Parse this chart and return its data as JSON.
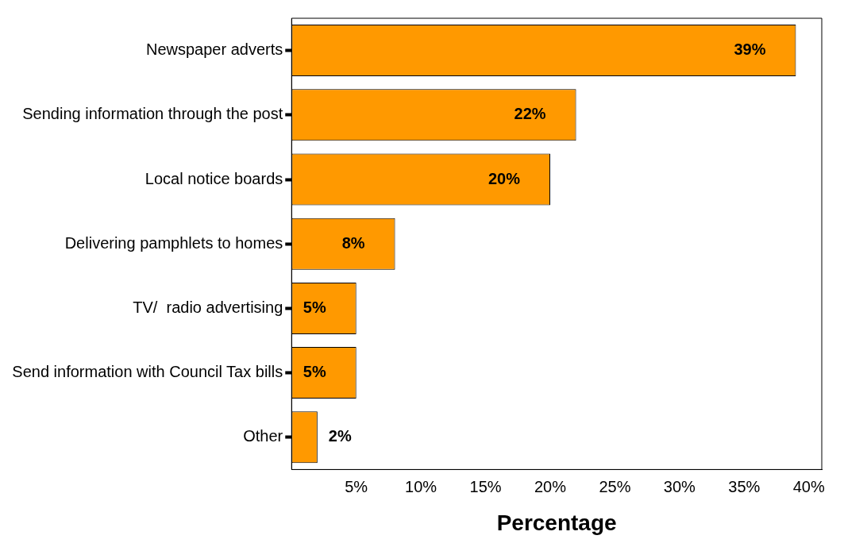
{
  "chart_data": {
    "type": "bar",
    "orientation": "horizontal",
    "xlabel": "Percentage",
    "categories": [
      "Newspaper adverts",
      "Sending information through the post",
      "Local notice boards",
      "Delivering pamphlets to homes",
      "TV/  radio advertising",
      "Send information with Council Tax bills",
      "Other"
    ],
    "values": [
      39,
      22,
      20,
      8,
      5,
      5,
      2
    ],
    "value_labels": [
      "39%",
      "22%",
      "20%",
      "8%",
      "5%",
      "5%",
      "2%"
    ],
    "color": "#ff9900",
    "xlim": [
      0,
      41
    ],
    "xticks": [
      {
        "value": 5,
        "label": "5%"
      },
      {
        "value": 10,
        "label": "10%"
      },
      {
        "value": 15,
        "label": "15%"
      },
      {
        "value": 20,
        "label": "20%"
      },
      {
        "value": 25,
        "label": "25%"
      },
      {
        "value": 30,
        "label": "30%"
      },
      {
        "value": 35,
        "label": "35%"
      },
      {
        "value": 40,
        "label": "40%"
      }
    ],
    "grid": false,
    "legend": false
  }
}
